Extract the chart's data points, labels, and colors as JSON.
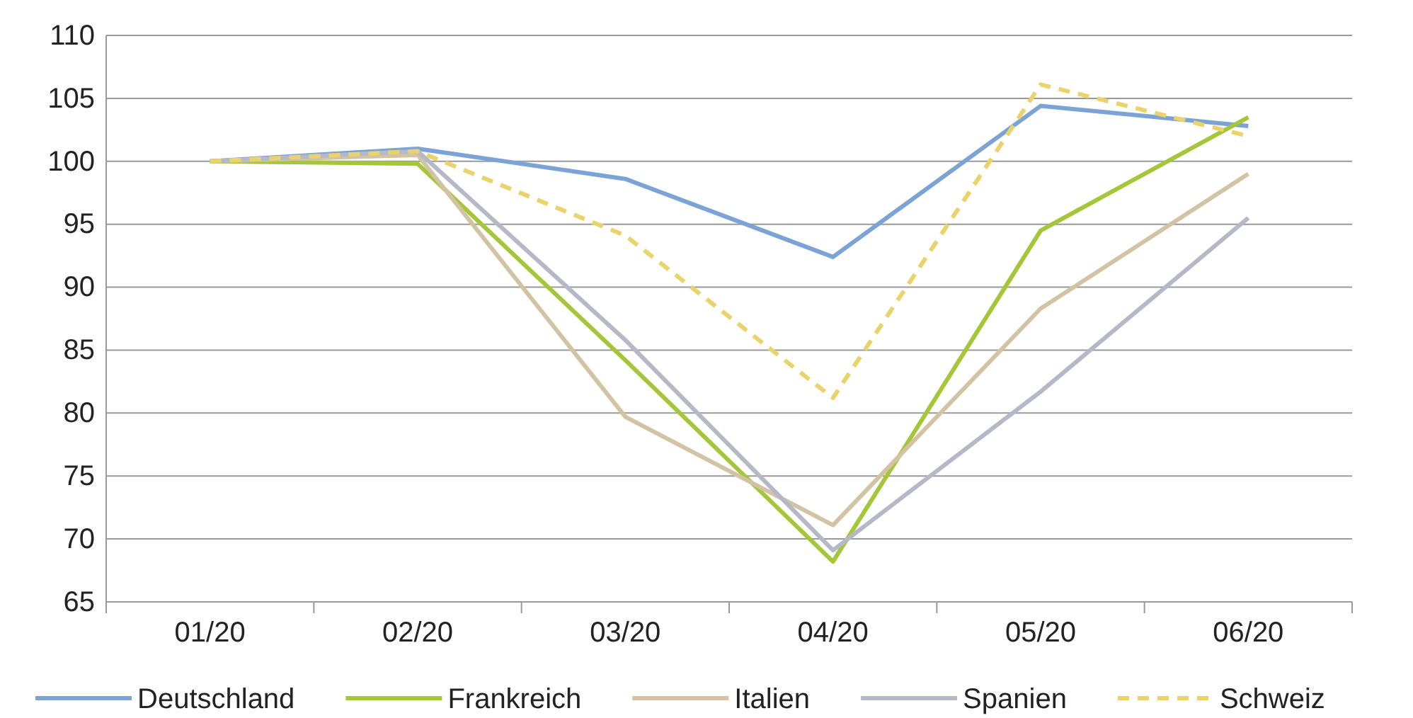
{
  "chart_data": {
    "type": "line",
    "categories": [
      "01/20",
      "02/20",
      "03/20",
      "04/20",
      "05/20",
      "06/20"
    ],
    "series": [
      {
        "name": "Deutschland",
        "color": "#7ba3d6",
        "values": [
          100,
          101,
          98.6,
          92.4,
          104.4,
          102.8
        ]
      },
      {
        "name": "Frankreich",
        "color": "#a4c739",
        "values": [
          100,
          99.8,
          84.2,
          68.2,
          94.5,
          103.5
        ]
      },
      {
        "name": "Italien",
        "color": "#d3c3a5",
        "values": [
          100,
          100.5,
          79.7,
          71.1,
          88.3,
          99
        ]
      },
      {
        "name": "Spanien",
        "color": "#b5b8c6",
        "values": [
          100,
          100.8,
          85.8,
          69.1,
          81.7,
          95.5
        ]
      },
      {
        "name": "Schweiz",
        "color": "#e9d36a",
        "values": [
          100,
          100.8,
          94.1,
          81.2,
          106.1,
          102
        ],
        "line_style": "dashed"
      }
    ],
    "ylim": [
      65,
      110
    ],
    "yticks": [
      65,
      70,
      75,
      80,
      85,
      90,
      95,
      100,
      105,
      110
    ],
    "grid": "y",
    "legend": "bottom",
    "line_style": "solid",
    "marker": "none"
  }
}
